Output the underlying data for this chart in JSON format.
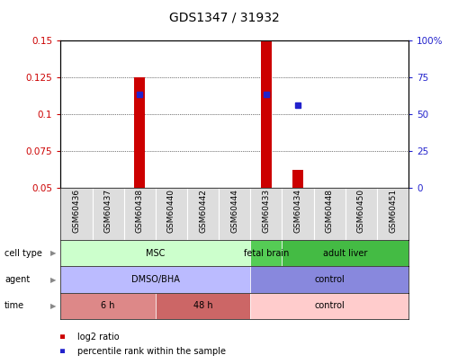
{
  "title": "GDS1347 / 31932",
  "samples": [
    "GSM60436",
    "GSM60437",
    "GSM60438",
    "GSM60440",
    "GSM60442",
    "GSM60444",
    "GSM60433",
    "GSM60434",
    "GSM60448",
    "GSM60450",
    "GSM60451"
  ],
  "log2_ratio": [
    null,
    null,
    0.125,
    null,
    null,
    null,
    0.15,
    0.062,
    null,
    null,
    null
  ],
  "percentile_rank": [
    null,
    null,
    0.113,
    null,
    null,
    null,
    0.113,
    0.106,
    null,
    null,
    null
  ],
  "ylim_left": [
    0.05,
    0.15
  ],
  "ylim_right": [
    0,
    100
  ],
  "yticks_left": [
    0.05,
    0.075,
    0.1,
    0.125,
    0.15
  ],
  "yticks_right": [
    0,
    25,
    50,
    75,
    100
  ],
  "ytick_labels_left": [
    "0.05",
    "0.075",
    "0.1",
    "0.125",
    "0.15"
  ],
  "ytick_labels_right": [
    "0",
    "25",
    "50",
    "75",
    "100%"
  ],
  "bar_color": "#cc0000",
  "point_color": "#2222cc",
  "cell_type_groups": [
    {
      "label": "MSC",
      "start": 0,
      "end": 6,
      "color": "#ccffcc"
    },
    {
      "label": "fetal brain",
      "start": 6,
      "end": 7,
      "color": "#55cc55"
    },
    {
      "label": "adult liver",
      "start": 7,
      "end": 11,
      "color": "#44bb44"
    }
  ],
  "agent_groups": [
    {
      "label": "DMSO/BHA",
      "start": 0,
      "end": 6,
      "color": "#bbbbff"
    },
    {
      "label": "control",
      "start": 6,
      "end": 11,
      "color": "#8888dd"
    }
  ],
  "time_groups": [
    {
      "label": "6 h",
      "start": 0,
      "end": 3,
      "color": "#dd8888"
    },
    {
      "label": "48 h",
      "start": 3,
      "end": 6,
      "color": "#cc6666"
    },
    {
      "label": "control",
      "start": 6,
      "end": 11,
      "color": "#ffcccc"
    }
  ],
  "row_labels": [
    "cell type",
    "agent",
    "time"
  ],
  "legend_items": [
    {
      "label": "log2 ratio",
      "color": "#cc0000"
    },
    {
      "label": "percentile rank within the sample",
      "color": "#2222cc"
    }
  ],
  "bg_color": "#ffffff",
  "tick_color_left": "#cc0000",
  "tick_color_right": "#2222cc",
  "sample_box_color": "#dddddd",
  "bar_width": 0.35
}
